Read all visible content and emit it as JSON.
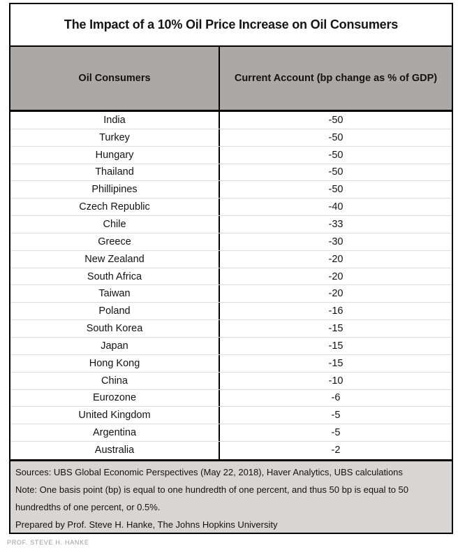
{
  "title": "The Impact of a 10% Oil Price Increase on Oil Consumers",
  "table": {
    "columns": [
      "Oil Consumers",
      "Current Account (bp change as % of GDP)"
    ],
    "rows": [
      [
        "India",
        "-50"
      ],
      [
        "Turkey",
        "-50"
      ],
      [
        "Hungary",
        "-50"
      ],
      [
        "Thailand",
        "-50"
      ],
      [
        "Phillipines",
        "-50"
      ],
      [
        "Czech Republic",
        "-40"
      ],
      [
        "Chile",
        "-33"
      ],
      [
        "Greece",
        "-30"
      ],
      [
        "New Zealand",
        "-20"
      ],
      [
        "South Africa",
        "-20"
      ],
      [
        "Taiwan",
        "-20"
      ],
      [
        "Poland",
        "-16"
      ],
      [
        "South Korea",
        "-15"
      ],
      [
        "Japan",
        "-15"
      ],
      [
        "Hong Kong",
        "-15"
      ],
      [
        "China",
        "-10"
      ],
      [
        "Eurozone",
        "-6"
      ],
      [
        "United Kingdom",
        "-5"
      ],
      [
        "Argentina",
        "-5"
      ],
      [
        "Australia",
        "-2"
      ]
    ]
  },
  "footer": {
    "lines": [
      "Sources: UBS Global Economic Perspectives (May 22, 2018), Haver Analytics, UBS calculations",
      "Note: One basis point (bp) is equal to one hundredth of one percent, and thus 50 bp is equal to 50",
      "hundredths of one percent, or 0.5%.",
      "Prepared by Prof. Steve H. Hanke, The Johns Hopkins University"
    ]
  },
  "caption": "PROF. STEVE H. HANKE",
  "colors": {
    "header_bg": "#aba8a6",
    "footer_bg": "#d8d5d3",
    "border": "#000000",
    "row_divider": "#dcdcdc",
    "caption_text": "#9a9a9a"
  },
  "chart_data": {
    "type": "table",
    "title": "The Impact of a 10% Oil Price Increase on Oil Consumers",
    "columns": [
      "Oil Consumers",
      "Current Account (bp change as % of GDP)"
    ],
    "categories": [
      "India",
      "Turkey",
      "Hungary",
      "Thailand",
      "Phillipines",
      "Czech Republic",
      "Chile",
      "Greece",
      "New Zealand",
      "South Africa",
      "Taiwan",
      "Poland",
      "South Korea",
      "Japan",
      "Hong Kong",
      "China",
      "Eurozone",
      "United Kingdom",
      "Argentina",
      "Australia"
    ],
    "values": [
      -50,
      -50,
      -50,
      -50,
      -50,
      -40,
      -33,
      -30,
      -20,
      -20,
      -20,
      -16,
      -15,
      -15,
      -15,
      -10,
      -6,
      -5,
      -5,
      -2
    ],
    "notes": "Sources: UBS Global Economic Perspectives (May 22, 2018), Haver Analytics, UBS calculations. Note: One basis point (bp) is equal to one hundredth of one percent, and thus 50 bp is equal to 50 hundredths of one percent, or 0.5%. Prepared by Prof. Steve H. Hanke, The Johns Hopkins University"
  }
}
